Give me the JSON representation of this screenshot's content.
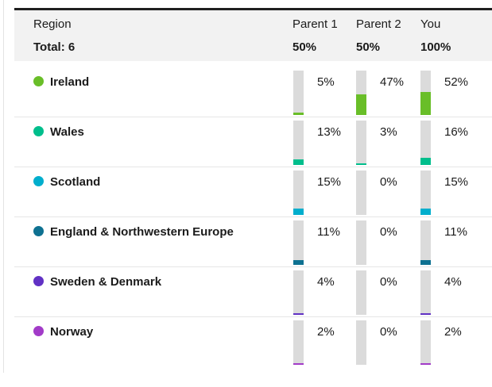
{
  "table": {
    "header": {
      "region_label": "Region",
      "total_label": "Total: 6",
      "columns": [
        {
          "label": "Parent 1",
          "total": "50%"
        },
        {
          "label": "Parent 2",
          "total": "50%"
        },
        {
          "label": "You",
          "total": "100%"
        }
      ]
    },
    "rows": [
      {
        "region": "Ireland",
        "color": "#69BE28",
        "cells": [
          {
            "label": "5%",
            "value": 5
          },
          {
            "label": "47%",
            "value": 47
          },
          {
            "label": "52%",
            "value": 52
          }
        ]
      },
      {
        "region": "Wales",
        "color": "#00BE8C",
        "cells": [
          {
            "label": "13%",
            "value": 13
          },
          {
            "label": "3%",
            "value": 3
          },
          {
            "label": "16%",
            "value": 16
          }
        ]
      },
      {
        "region": "Scotland",
        "color": "#00AECD",
        "cells": [
          {
            "label": "15%",
            "value": 15
          },
          {
            "label": "0%",
            "value": 0
          },
          {
            "label": "15%",
            "value": 15
          }
        ]
      },
      {
        "region": "England & Northwestern Europe",
        "color": "#0E7191",
        "cells": [
          {
            "label": "11%",
            "value": 11
          },
          {
            "label": "0%",
            "value": 0
          },
          {
            "label": "11%",
            "value": 11
          }
        ]
      },
      {
        "region": "Sweden & Denmark",
        "color": "#6131C4",
        "cells": [
          {
            "label": "4%",
            "value": 4
          },
          {
            "label": "0%",
            "value": 0
          },
          {
            "label": "4%",
            "value": 4
          }
        ]
      },
      {
        "region": "Norway",
        "color": "#A23BC8",
        "cells": [
          {
            "label": "2%",
            "value": 2
          },
          {
            "label": "0%",
            "value": 0
          },
          {
            "label": "2%",
            "value": 2
          }
        ]
      }
    ]
  },
  "colors": {
    "header_bg": "#f2f2f2",
    "header_top_border": "#1f1f1f",
    "bar_track": "#dbdbdb",
    "row_separator": "#e6e6e6",
    "text": "#1b1b1b"
  },
  "chart_data": {
    "type": "table",
    "title": "Region",
    "total_label": "Total: 6",
    "categories": [
      "Ireland",
      "Wales",
      "Scotland",
      "England & Northwestern Europe",
      "Sweden & Denmark",
      "Norway"
    ],
    "category_colors": [
      "#69BE28",
      "#00BE8C",
      "#00AECD",
      "#0E7191",
      "#6131C4",
      "#A23BC8"
    ],
    "series": [
      {
        "name": "Parent 1",
        "total": "50%",
        "values": [
          5,
          13,
          15,
          11,
          4,
          2
        ]
      },
      {
        "name": "Parent 2",
        "total": "50%",
        "values": [
          47,
          3,
          0,
          0,
          0,
          0
        ]
      },
      {
        "name": "You",
        "total": "100%",
        "values": [
          52,
          16,
          15,
          11,
          4,
          2
        ]
      }
    ],
    "value_unit": "%",
    "bar_orientation": "vertical",
    "bar_scale_max": 100
  }
}
